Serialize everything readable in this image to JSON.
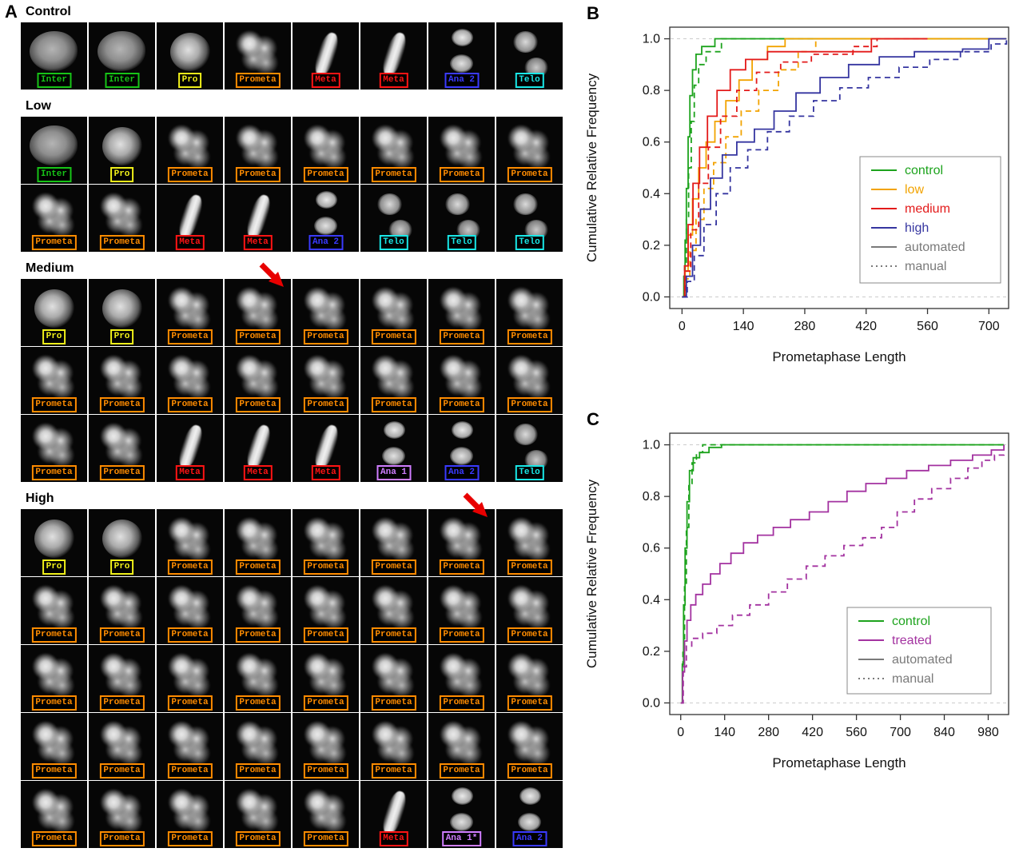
{
  "figure": {
    "panel_a_label": "A",
    "panel_b_label": "B",
    "panel_c_label": "C"
  },
  "phase_colors": {
    "Inter": "#17c417",
    "Pro": "#f0f01a",
    "Prometa": "#ff8c00",
    "Meta": "#ff1414",
    "Ana 1": "#cf7dff",
    "Ana 1*": "#cf7dff",
    "Ana 2": "#3a3aff",
    "Telo": "#19e8e8"
  },
  "panel_a": {
    "arrow_color": "#e80000",
    "sections": [
      {
        "title": "Control",
        "rows": [
          [
            "Inter",
            "Inter",
            "Pro",
            "Prometa",
            "Meta",
            "Meta",
            "Ana 2",
            "Telo"
          ]
        ]
      },
      {
        "title": "Low",
        "rows": [
          [
            "Inter",
            "Pro",
            "Prometa",
            "Prometa",
            "Prometa",
            "Prometa",
            "Prometa",
            "Prometa"
          ],
          [
            "Prometa",
            "Prometa",
            "Meta",
            "Meta",
            "Ana 2",
            "Telo",
            "Telo",
            "Telo"
          ]
        ]
      },
      {
        "title": "Medium",
        "arrow": {
          "row": 0,
          "cell": 3
        },
        "rows": [
          [
            "Pro",
            "Pro",
            "Prometa",
            "Prometa",
            "Prometa",
            "Prometa",
            "Prometa",
            "Prometa"
          ],
          [
            "Prometa",
            "Prometa",
            "Prometa",
            "Prometa",
            "Prometa",
            "Prometa",
            "Prometa",
            "Prometa"
          ],
          [
            "Prometa",
            "Prometa",
            "Meta",
            "Meta",
            "Meta",
            "Ana 1",
            "Ana 2",
            "Telo"
          ]
        ]
      },
      {
        "title": "High",
        "arrow": {
          "row": 0,
          "cell": 6
        },
        "rows": [
          [
            "Pro",
            "Pro",
            "Prometa",
            "Prometa",
            "Prometa",
            "Prometa",
            "Prometa",
            "Prometa"
          ],
          [
            "Prometa",
            "Prometa",
            "Prometa",
            "Prometa",
            "Prometa",
            "Prometa",
            "Prometa",
            "Prometa"
          ],
          [
            "Prometa",
            "Prometa",
            "Prometa",
            "Prometa",
            "Prometa",
            "Prometa",
            "Prometa",
            "Prometa"
          ],
          [
            "Prometa",
            "Prometa",
            "Prometa",
            "Prometa",
            "Prometa",
            "Prometa",
            "Prometa",
            "Prometa"
          ],
          [
            "Prometa",
            "Prometa",
            "Prometa",
            "Prometa",
            "Prometa",
            "Meta",
            "Ana 1*",
            "Ana 2"
          ]
        ]
      }
    ]
  },
  "chart_data": [
    {
      "id": "B",
      "type": "line",
      "variant": "step-cumulative-frequency",
      "title": "",
      "xlabel": "Prometaphase Length",
      "ylabel": "Cumulative Relative Frequency",
      "xlim": [
        -28,
        745
      ],
      "ylim": [
        -0.045,
        1.045
      ],
      "xticks": [
        0,
        140,
        280,
        420,
        560,
        700
      ],
      "yticks": [
        0,
        0.2,
        0.4,
        0.6,
        0.8,
        1
      ],
      "grid": "dashed gray reference lines at y=0 and y=1",
      "legend_position": "middle-right",
      "legend_entries": [
        {
          "label": "control",
          "color": "#1da31d",
          "line": "solid"
        },
        {
          "label": "low",
          "color": "#f2a300",
          "line": "solid"
        },
        {
          "label": "medium",
          "color": "#e31a1a",
          "line": "solid"
        },
        {
          "label": "high",
          "color": "#3535a0",
          "line": "solid"
        },
        {
          "label": "automated",
          "color": "#7a7a7a",
          "line": "solid"
        },
        {
          "label": "manual",
          "color": "#7a7a7a",
          "line": "dotted"
        }
      ],
      "series": [
        {
          "name": "control automated",
          "color": "#1da31d",
          "dash": "solid",
          "points": [
            [
              0,
              0
            ],
            [
              4,
              0.08
            ],
            [
              7,
              0.22
            ],
            [
              10,
              0.42
            ],
            [
              14,
              0.62
            ],
            [
              18,
              0.78
            ],
            [
              24,
              0.88
            ],
            [
              32,
              0.94
            ],
            [
              45,
              0.97
            ],
            [
              75,
              1.0
            ],
            [
              740,
              1.0
            ]
          ]
        },
        {
          "name": "control manual",
          "color": "#1da31d",
          "dash": "dashed",
          "points": [
            [
              0,
              0
            ],
            [
              6,
              0.12
            ],
            [
              10,
              0.3
            ],
            [
              15,
              0.5
            ],
            [
              21,
              0.68
            ],
            [
              28,
              0.82
            ],
            [
              38,
              0.9
            ],
            [
              55,
              0.95
            ],
            [
              90,
              1.0
            ],
            [
              740,
              1.0
            ]
          ]
        },
        {
          "name": "low automated",
          "color": "#f2a300",
          "dash": "solid",
          "points": [
            [
              0,
              0
            ],
            [
              7,
              0.1
            ],
            [
              14,
              0.24
            ],
            [
              24,
              0.38
            ],
            [
              38,
              0.5
            ],
            [
              55,
              0.6
            ],
            [
              75,
              0.68
            ],
            [
              100,
              0.76
            ],
            [
              130,
              0.84
            ],
            [
              160,
              0.92
            ],
            [
              195,
              0.97
            ],
            [
              235,
              1.0
            ],
            [
              740,
              1.0
            ]
          ]
        },
        {
          "name": "low manual",
          "color": "#f2a300",
          "dash": "dashed",
          "points": [
            [
              0,
              0
            ],
            [
              9,
              0.07
            ],
            [
              18,
              0.18
            ],
            [
              32,
              0.3
            ],
            [
              50,
              0.42
            ],
            [
              72,
              0.52
            ],
            [
              100,
              0.62
            ],
            [
              135,
              0.72
            ],
            [
              175,
              0.8
            ],
            [
              220,
              0.88
            ],
            [
              265,
              0.95
            ],
            [
              305,
              1.0
            ],
            [
              740,
              1.0
            ]
          ]
        },
        {
          "name": "medium automated",
          "color": "#e31a1a",
          "dash": "solid",
          "points": [
            [
              0,
              0
            ],
            [
              6,
              0.12
            ],
            [
              14,
              0.28
            ],
            [
              25,
              0.44
            ],
            [
              40,
              0.58
            ],
            [
              58,
              0.7
            ],
            [
              80,
              0.8
            ],
            [
              110,
              0.88
            ],
            [
              145,
              0.92
            ],
            [
              195,
              0.95
            ],
            [
              420,
              0.95
            ],
            [
              432,
              1.0
            ],
            [
              560,
              1.0
            ]
          ]
        },
        {
          "name": "medium manual",
          "color": "#e31a1a",
          "dash": "dashed",
          "points": [
            [
              0,
              0
            ],
            [
              8,
              0.1
            ],
            [
              20,
              0.26
            ],
            [
              38,
              0.44
            ],
            [
              60,
              0.58
            ],
            [
              88,
              0.7
            ],
            [
              125,
              0.8
            ],
            [
              170,
              0.87
            ],
            [
              225,
              0.91
            ],
            [
              295,
              0.94
            ],
            [
              390,
              0.97
            ],
            [
              445,
              1.0
            ],
            [
              560,
              1.0
            ]
          ]
        },
        {
          "name": "high automated",
          "color": "#3535a0",
          "dash": "solid",
          "points": [
            [
              0,
              0
            ],
            [
              10,
              0.08
            ],
            [
              24,
              0.2
            ],
            [
              42,
              0.34
            ],
            [
              65,
              0.46
            ],
            [
              92,
              0.55
            ],
            [
              125,
              0.6
            ],
            [
              165,
              0.65
            ],
            [
              210,
              0.72
            ],
            [
              260,
              0.79
            ],
            [
              315,
              0.85
            ],
            [
              380,
              0.9
            ],
            [
              450,
              0.93
            ],
            [
              530,
              0.95
            ],
            [
              640,
              0.96
            ],
            [
              700,
              1.0
            ],
            [
              740,
              1.0
            ]
          ]
        },
        {
          "name": "high manual",
          "color": "#3535a0",
          "dash": "dashed",
          "points": [
            [
              0,
              0
            ],
            [
              12,
              0.06
            ],
            [
              28,
              0.16
            ],
            [
              50,
              0.28
            ],
            [
              78,
              0.4
            ],
            [
              110,
              0.5
            ],
            [
              150,
              0.57
            ],
            [
              195,
              0.64
            ],
            [
              245,
              0.7
            ],
            [
              300,
              0.76
            ],
            [
              360,
              0.81
            ],
            [
              425,
              0.85
            ],
            [
              495,
              0.89
            ],
            [
              565,
              0.92
            ],
            [
              635,
              0.95
            ],
            [
              705,
              0.98
            ],
            [
              740,
              1.0
            ]
          ]
        }
      ]
    },
    {
      "id": "C",
      "type": "line",
      "variant": "step-cumulative-frequency",
      "title": "",
      "xlabel": "Prometaphase Length",
      "ylabel": "Cumulative Relative Frequency",
      "xlim": [
        -35,
        1045
      ],
      "ylim": [
        -0.045,
        1.045
      ],
      "xticks": [
        0,
        140,
        280,
        420,
        560,
        700,
        840,
        980
      ],
      "yticks": [
        0,
        0.2,
        0.4,
        0.6,
        0.8,
        1
      ],
      "grid": "dashed gray reference lines at y=0 and y=1",
      "legend_position": "lower-right",
      "legend_entries": [
        {
          "label": "control",
          "color": "#1da31d",
          "line": "solid"
        },
        {
          "label": "treated",
          "color": "#a332a0",
          "line": "solid"
        },
        {
          "label": "automated",
          "color": "#7a7a7a",
          "line": "solid"
        },
        {
          "label": "manual",
          "color": "#7a7a7a",
          "line": "dotted"
        }
      ],
      "series": [
        {
          "name": "control automated",
          "color": "#1da31d",
          "dash": "solid",
          "points": [
            [
              0,
              0
            ],
            [
              5,
              0.15
            ],
            [
              9,
              0.38
            ],
            [
              14,
              0.6
            ],
            [
              20,
              0.78
            ],
            [
              28,
              0.9
            ],
            [
              40,
              0.95
            ],
            [
              60,
              0.97
            ],
            [
              90,
              0.99
            ],
            [
              130,
              1.0
            ],
            [
              1030,
              1.0
            ]
          ]
        },
        {
          "name": "control manual",
          "color": "#1da31d",
          "dash": "dashed",
          "points": [
            [
              0,
              0
            ],
            [
              7,
              0.2
            ],
            [
              12,
              0.45
            ],
            [
              18,
              0.68
            ],
            [
              26,
              0.85
            ],
            [
              36,
              0.93
            ],
            [
              50,
              0.97
            ],
            [
              70,
              1.0
            ],
            [
              1030,
              1.0
            ]
          ]
        },
        {
          "name": "treated automated",
          "color": "#a332a0",
          "dash": "solid",
          "points": [
            [
              0,
              0
            ],
            [
              6,
              0.12
            ],
            [
              12,
              0.24
            ],
            [
              20,
              0.32
            ],
            [
              32,
              0.38
            ],
            [
              48,
              0.42
            ],
            [
              70,
              0.46
            ],
            [
              95,
              0.5
            ],
            [
              125,
              0.54
            ],
            [
              160,
              0.58
            ],
            [
              200,
              0.62
            ],
            [
              245,
              0.65
            ],
            [
              295,
              0.68
            ],
            [
              350,
              0.71
            ],
            [
              410,
              0.74
            ],
            [
              470,
              0.78
            ],
            [
              530,
              0.82
            ],
            [
              590,
              0.85
            ],
            [
              655,
              0.87
            ],
            [
              720,
              0.9
            ],
            [
              790,
              0.92
            ],
            [
              860,
              0.94
            ],
            [
              930,
              0.96
            ],
            [
              990,
              0.98
            ],
            [
              1030,
              1.0
            ]
          ]
        },
        {
          "name": "treated manual",
          "color": "#a332a0",
          "dash": "dashed",
          "points": [
            [
              0,
              0
            ],
            [
              8,
              0.14
            ],
            [
              18,
              0.22
            ],
            [
              35,
              0.25
            ],
            [
              70,
              0.27
            ],
            [
              115,
              0.3
            ],
            [
              165,
              0.34
            ],
            [
              220,
              0.38
            ],
            [
              280,
              0.43
            ],
            [
              340,
              0.48
            ],
            [
              400,
              0.53
            ],
            [
              460,
              0.57
            ],
            [
              520,
              0.61
            ],
            [
              580,
              0.64
            ],
            [
              640,
              0.68
            ],
            [
              690,
              0.74
            ],
            [
              745,
              0.79
            ],
            [
              800,
              0.83
            ],
            [
              860,
              0.87
            ],
            [
              915,
              0.91
            ],
            [
              960,
              0.94
            ],
            [
              1000,
              0.96
            ],
            [
              1030,
              0.97
            ]
          ]
        }
      ]
    }
  ]
}
